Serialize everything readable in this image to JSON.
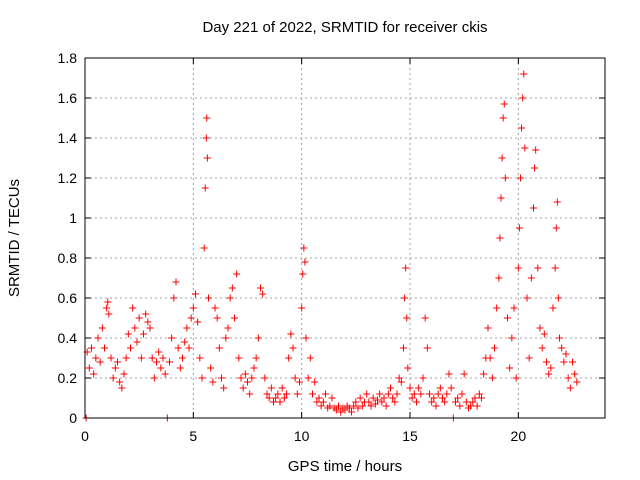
{
  "chart_data": {
    "type": "scatter",
    "title": "Day 221 of 2022, SRMTID for receiver ckis",
    "xlabel": "GPS time / hours",
    "ylabel": "SRMTID / TECUs",
    "xlim": [
      0,
      24
    ],
    "ylim": [
      0,
      1.8
    ],
    "xticks": [
      0,
      5,
      10,
      15,
      20
    ],
    "xtick_labels": [
      "0",
      "5",
      "10",
      "15",
      "20"
    ],
    "yticks": [
      0,
      0.2,
      0.4,
      0.6,
      0.8,
      1.0,
      1.2,
      1.4,
      1.6,
      1.8
    ],
    "ytick_labels": [
      "0",
      "0.2",
      "0.4",
      "0.6",
      "0.8",
      "1",
      "1.2",
      "1.4",
      "1.6",
      "1.8"
    ],
    "grid": true,
    "marker": "+",
    "marker_color": "#ff0000",
    "series": [
      {
        "name": "SRMTID",
        "color": "#ff0000",
        "points": [
          [
            0.05,
            0.0
          ],
          [
            0.1,
            0.33
          ],
          [
            0.2,
            0.25
          ],
          [
            0.3,
            0.35
          ],
          [
            0.4,
            0.22
          ],
          [
            0.5,
            0.3
          ],
          [
            0.6,
            0.4
          ],
          [
            0.7,
            0.28
          ],
          [
            0.8,
            0.45
          ],
          [
            0.9,
            0.35
          ],
          [
            1.0,
            0.55
          ],
          [
            1.05,
            0.58
          ],
          [
            1.1,
            0.52
          ],
          [
            1.2,
            0.3
          ],
          [
            1.3,
            0.2
          ],
          [
            1.4,
            0.25
          ],
          [
            1.5,
            0.28
          ],
          [
            1.6,
            0.18
          ],
          [
            1.7,
            0.15
          ],
          [
            1.8,
            0.22
          ],
          [
            1.9,
            0.3
          ],
          [
            2.0,
            0.42
          ],
          [
            2.1,
            0.35
          ],
          [
            2.2,
            0.55
          ],
          [
            2.3,
            0.45
          ],
          [
            2.4,
            0.38
          ],
          [
            2.5,
            0.5
          ],
          [
            2.6,
            0.3
          ],
          [
            2.7,
            0.42
          ],
          [
            2.8,
            0.52
          ],
          [
            2.9,
            0.48
          ],
          [
            3.0,
            0.45
          ],
          [
            3.1,
            0.3
          ],
          [
            3.2,
            0.2
          ],
          [
            3.3,
            0.28
          ],
          [
            3.4,
            0.33
          ],
          [
            3.5,
            0.25
          ],
          [
            3.6,
            0.3
          ],
          [
            3.7,
            0.22
          ],
          [
            3.8,
            0.0
          ],
          [
            3.9,
            0.28
          ],
          [
            4.0,
            0.4
          ],
          [
            4.1,
            0.6
          ],
          [
            4.2,
            0.68
          ],
          [
            4.3,
            0.35
          ],
          [
            4.4,
            0.25
          ],
          [
            4.5,
            0.3
          ],
          [
            4.6,
            0.38
          ],
          [
            4.7,
            0.45
          ],
          [
            4.8,
            0.35
          ],
          [
            4.9,
            0.5
          ],
          [
            5.0,
            0.55
          ],
          [
            5.1,
            0.62
          ],
          [
            5.2,
            0.48
          ],
          [
            5.3,
            0.3
          ],
          [
            5.4,
            0.2
          ],
          [
            5.5,
            0.85
          ],
          [
            5.55,
            1.15
          ],
          [
            5.6,
            1.4
          ],
          [
            5.62,
            1.5
          ],
          [
            5.65,
            1.3
          ],
          [
            5.7,
            0.6
          ],
          [
            5.8,
            0.25
          ],
          [
            5.9,
            0.18
          ],
          [
            6.0,
            0.55
          ],
          [
            6.1,
            0.5
          ],
          [
            6.2,
            0.35
          ],
          [
            6.3,
            0.2
          ],
          [
            6.4,
            0.15
          ],
          [
            6.5,
            0.4
          ],
          [
            6.6,
            0.45
          ],
          [
            6.7,
            0.6
          ],
          [
            6.8,
            0.65
          ],
          [
            6.9,
            0.5
          ],
          [
            7.0,
            0.72
          ],
          [
            7.1,
            0.3
          ],
          [
            7.2,
            0.2
          ],
          [
            7.3,
            0.15
          ],
          [
            7.4,
            0.22
          ],
          [
            7.5,
            0.18
          ],
          [
            7.6,
            0.12
          ],
          [
            7.7,
            0.2
          ],
          [
            7.8,
            0.25
          ],
          [
            7.9,
            0.3
          ],
          [
            8.0,
            0.4
          ],
          [
            8.1,
            0.65
          ],
          [
            8.2,
            0.62
          ],
          [
            8.3,
            0.2
          ],
          [
            8.4,
            0.12
          ],
          [
            8.5,
            0.1
          ],
          [
            8.6,
            0.15
          ],
          [
            8.7,
            0.08
          ],
          [
            8.8,
            0.1
          ],
          [
            8.9,
            0.12
          ],
          [
            9.0,
            0.08
          ],
          [
            9.1,
            0.15
          ],
          [
            9.2,
            0.1
          ],
          [
            9.3,
            0.12
          ],
          [
            9.4,
            0.3
          ],
          [
            9.5,
            0.42
          ],
          [
            9.6,
            0.35
          ],
          [
            9.7,
            0.2
          ],
          [
            9.8,
            0.12
          ],
          [
            9.9,
            0.18
          ],
          [
            10.0,
            0.55
          ],
          [
            10.05,
            0.72
          ],
          [
            10.1,
            0.85
          ],
          [
            10.15,
            0.78
          ],
          [
            10.2,
            0.4
          ],
          [
            10.3,
            0.2
          ],
          [
            10.4,
            0.3
          ],
          [
            10.5,
            0.12
          ],
          [
            10.6,
            0.18
          ],
          [
            10.7,
            0.08
          ],
          [
            10.8,
            0.1
          ],
          [
            10.9,
            0.06
          ],
          [
            11.0,
            0.08
          ],
          [
            11.1,
            0.12
          ],
          [
            11.2,
            0.05
          ],
          [
            11.3,
            0.06
          ],
          [
            11.4,
            0.1
          ],
          [
            11.5,
            0.05
          ],
          [
            11.6,
            0.04
          ],
          [
            11.7,
            0.06
          ],
          [
            11.8,
            0.03
          ],
          [
            11.9,
            0.05
          ],
          [
            12.0,
            0.04
          ],
          [
            12.1,
            0.06
          ],
          [
            12.2,
            0.05
          ],
          [
            12.3,
            0.03
          ],
          [
            12.4,
            0.06
          ],
          [
            12.5,
            0.08
          ],
          [
            12.6,
            0.05
          ],
          [
            12.7,
            0.1
          ],
          [
            12.8,
            0.06
          ],
          [
            12.9,
            0.08
          ],
          [
            13.0,
            0.12
          ],
          [
            13.1,
            0.08
          ],
          [
            13.2,
            0.06
          ],
          [
            13.3,
            0.1
          ],
          [
            13.4,
            0.07
          ],
          [
            13.5,
            0.09
          ],
          [
            13.6,
            0.12
          ],
          [
            13.7,
            0.08
          ],
          [
            13.8,
            0.1
          ],
          [
            13.9,
            0.06
          ],
          [
            14.0,
            0.12
          ],
          [
            14.1,
            0.15
          ],
          [
            14.2,
            0.1
          ],
          [
            14.3,
            0.08
          ],
          [
            14.4,
            0.12
          ],
          [
            14.5,
            0.2
          ],
          [
            14.6,
            0.18
          ],
          [
            14.7,
            0.35
          ],
          [
            14.75,
            0.6
          ],
          [
            14.8,
            0.75
          ],
          [
            14.85,
            0.5
          ],
          [
            14.9,
            0.25
          ],
          [
            15.0,
            0.15
          ],
          [
            15.1,
            0.1
          ],
          [
            15.2,
            0.12
          ],
          [
            15.3,
            0.08
          ],
          [
            15.4,
            0.15
          ],
          [
            15.5,
            0.12
          ],
          [
            15.6,
            0.2
          ],
          [
            15.7,
            0.5
          ],
          [
            15.8,
            0.35
          ],
          [
            15.9,
            0.12
          ],
          [
            16.0,
            0.08
          ],
          [
            16.1,
            0.1
          ],
          [
            16.2,
            0.06
          ],
          [
            16.3,
            0.12
          ],
          [
            16.4,
            0.15
          ],
          [
            16.5,
            0.1
          ],
          [
            16.6,
            0.08
          ],
          [
            16.7,
            0.12
          ],
          [
            16.8,
            0.22
          ],
          [
            16.9,
            0.15
          ],
          [
            17.0,
            0.0
          ],
          [
            17.1,
            0.08
          ],
          [
            17.2,
            0.1
          ],
          [
            17.3,
            0.06
          ],
          [
            17.4,
            0.12
          ],
          [
            17.5,
            0.22
          ],
          [
            17.6,
            0.08
          ],
          [
            17.7,
            0.05
          ],
          [
            17.8,
            0.06
          ],
          [
            17.9,
            0.08
          ],
          [
            18.0,
            0.1
          ],
          [
            18.1,
            0.06
          ],
          [
            18.2,
            0.12
          ],
          [
            18.3,
            0.1
          ],
          [
            18.4,
            0.22
          ],
          [
            18.5,
            0.3
          ],
          [
            18.6,
            0.45
          ],
          [
            18.7,
            0.3
          ],
          [
            18.8,
            0.2
          ],
          [
            18.9,
            0.35
          ],
          [
            19.0,
            0.55
          ],
          [
            19.1,
            0.7
          ],
          [
            19.15,
            0.9
          ],
          [
            19.2,
            1.1
          ],
          [
            19.25,
            1.3
          ],
          [
            19.3,
            1.5
          ],
          [
            19.35,
            1.57
          ],
          [
            19.4,
            1.2
          ],
          [
            19.5,
            0.5
          ],
          [
            19.6,
            0.25
          ],
          [
            19.7,
            0.4
          ],
          [
            19.8,
            0.55
          ],
          [
            19.9,
            0.2
          ],
          [
            20.0,
            0.75
          ],
          [
            20.05,
            0.95
          ],
          [
            20.1,
            1.2
          ],
          [
            20.15,
            1.45
          ],
          [
            20.2,
            1.6
          ],
          [
            20.25,
            1.72
          ],
          [
            20.3,
            1.35
          ],
          [
            20.4,
            0.6
          ],
          [
            20.5,
            0.3
          ],
          [
            20.6,
            0.7
          ],
          [
            20.7,
            1.05
          ],
          [
            20.75,
            1.25
          ],
          [
            20.8,
            1.34
          ],
          [
            20.9,
            0.75
          ],
          [
            21.0,
            0.45
          ],
          [
            21.1,
            0.35
          ],
          [
            21.2,
            0.42
          ],
          [
            21.3,
            0.28
          ],
          [
            21.4,
            0.22
          ],
          [
            21.5,
            0.25
          ],
          [
            21.6,
            0.55
          ],
          [
            21.7,
            0.75
          ],
          [
            21.75,
            0.95
          ],
          [
            21.8,
            1.08
          ],
          [
            21.85,
            0.6
          ],
          [
            21.9,
            0.4
          ],
          [
            22.0,
            0.35
          ],
          [
            22.1,
            0.28
          ],
          [
            22.2,
            0.32
          ],
          [
            22.3,
            0.2
          ],
          [
            22.4,
            0.15
          ],
          [
            22.5,
            0.28
          ],
          [
            22.6,
            0.22
          ],
          [
            22.7,
            0.18
          ]
        ]
      }
    ]
  }
}
